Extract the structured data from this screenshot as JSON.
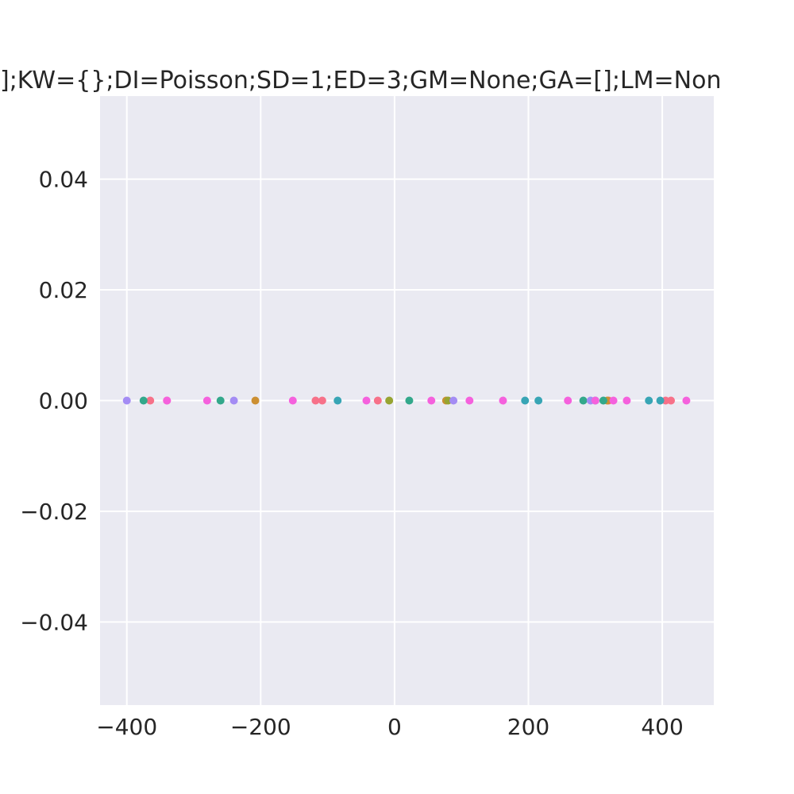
{
  "chart_data": {
    "type": "scatter",
    "title": "];KW={};DI=Poisson;SD=1;ED=3;GM=None;GA=[];LM=Non",
    "xlabel": "",
    "ylabel": "",
    "xlim": [
      -440,
      477
    ],
    "ylim": [
      -0.055,
      0.055
    ],
    "x_ticks": [
      -400,
      -200,
      0,
      200,
      400
    ],
    "x_tick_labels": [
      "−400",
      "−200",
      "0",
      "200",
      "400"
    ],
    "y_ticks": [
      0.04,
      0.02,
      0.0,
      -0.02,
      -0.04
    ],
    "y_tick_labels": [
      "0.04",
      "0.02",
      "0.00",
      "−0.02",
      "−0.04"
    ],
    "grid": true,
    "legend": "none",
    "background_color": "#eaeaf2",
    "grid_color": "#ffffff",
    "series": [
      {
        "color": "#f77189",
        "x": [
          -365,
          -340,
          -118,
          -108,
          -25,
          320,
          405,
          413
        ],
        "y": [
          0,
          0,
          0,
          0,
          0,
          0,
          0,
          0
        ]
      },
      {
        "color": "#cc8f32",
        "x": [
          -208,
          77,
          318
        ],
        "y": [
          0,
          0,
          0
        ]
      },
      {
        "color": "#97a431",
        "x": [
          -8,
          80
        ],
        "y": [
          0,
          0
        ]
      },
      {
        "color": "#33a88b",
        "x": [
          -375,
          -260,
          22,
          282,
          312
        ],
        "y": [
          0,
          0,
          0,
          0,
          0
        ]
      },
      {
        "color": "#38a5b5",
        "x": [
          -85,
          195,
          215,
          300,
          380,
          397
        ],
        "y": [
          0,
          0,
          0,
          0,
          0,
          0
        ]
      },
      {
        "color": "#a48cf4",
        "x": [
          -400,
          -240,
          88,
          293
        ],
        "y": [
          0,
          0,
          0,
          0
        ]
      },
      {
        "color": "#f561dd",
        "x": [
          -340,
          -280,
          -152,
          -42,
          55,
          112,
          162,
          259,
          300,
          327,
          347,
          436
        ],
        "y": [
          0,
          0,
          0,
          0,
          0,
          0,
          0,
          0,
          0,
          0,
          0,
          0
        ]
      }
    ]
  }
}
